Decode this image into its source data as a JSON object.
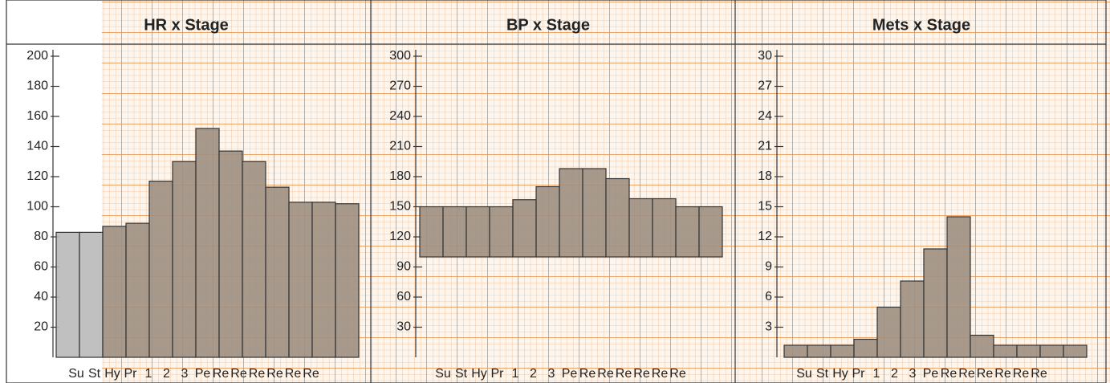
{
  "chart_data": [
    {
      "type": "bar",
      "title": "HR x Stage",
      "categories": [
        "Su",
        "St",
        "Hy",
        "Pr",
        "1",
        "2",
        "3",
        "Pe",
        "Re",
        "Re",
        "Re",
        "Re",
        "Re",
        "Re"
      ],
      "values": [
        83,
        83,
        87,
        89,
        117,
        130,
        152,
        137,
        130,
        113,
        103,
        103,
        102,
        null
      ],
      "colors": [
        "#b9b9b9",
        "#b9b9b9",
        "#9d8f7f",
        "#9d8f7f",
        "#9d8f7f",
        "#9d8f7f",
        "#9d8f7f",
        "#9d8f7f",
        "#9d8f7f",
        "#9d8f7f",
        "#9d8f7f",
        "#9d8f7f",
        "#9d8f7f",
        "#9d8f7f"
      ],
      "ylim": [
        0,
        200
      ],
      "yticks": [
        20,
        40,
        60,
        80,
        100,
        120,
        140,
        160,
        180,
        200
      ]
    },
    {
      "type": "bar",
      "title": "BP x Stage",
      "categories": [
        "Su",
        "St",
        "Hy",
        "Pr",
        "1",
        "2",
        "3",
        "Pe",
        "Re",
        "Re",
        "Re",
        "Re",
        "Re",
        "Re"
      ],
      "low": [
        100,
        100,
        100,
        100,
        100,
        100,
        100,
        100,
        100,
        100,
        100,
        100,
        100,
        null
      ],
      "values": [
        150,
        150,
        150,
        150,
        157,
        170,
        188,
        188,
        178,
        158,
        158,
        150,
        150,
        null
      ],
      "color": "#9d8f7f",
      "ylim": [
        0,
        300
      ],
      "yticks": [
        30,
        60,
        90,
        120,
        150,
        180,
        210,
        240,
        270,
        300
      ]
    },
    {
      "type": "bar",
      "title": "Mets x Stage",
      "categories": [
        "Su",
        "St",
        "Hy",
        "Pr",
        "1",
        "2",
        "3",
        "Pe",
        "Re",
        "Re",
        "Re",
        "Re",
        "Re",
        "Re"
      ],
      "values": [
        1.2,
        1.2,
        1.2,
        1.8,
        5,
        7.6,
        10.8,
        14,
        2.2,
        1.2,
        1.2,
        1.2,
        1.2,
        null
      ],
      "color": "#9d8f7f",
      "ylim": [
        0,
        30
      ],
      "yticks": [
        3,
        6,
        9,
        12,
        15,
        18,
        21,
        24,
        27,
        30
      ]
    }
  ]
}
